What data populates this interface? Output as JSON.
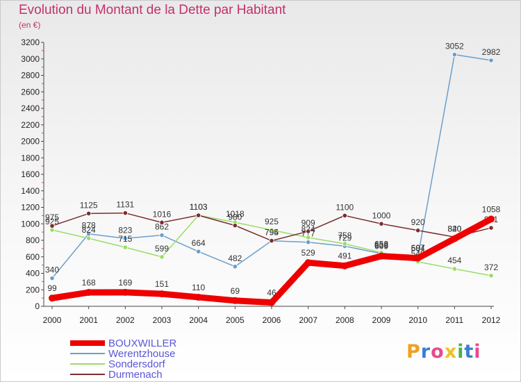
{
  "header": {
    "title": "Evolution du Montant de la Dette par Habitant",
    "subtitle": "(en €)"
  },
  "logo": {
    "text": "Proxiti",
    "colors": [
      "#f0a020",
      "#3a7fd0",
      "#e84b8a",
      "#f0c020",
      "#4caf50",
      "#3a7fd0",
      "#e84b8a"
    ]
  },
  "chart_data": {
    "type": "line",
    "title": "Evolution du Montant de la Dette par Habitant",
    "subtitle": "(en €)",
    "x": [
      "2000",
      "2001",
      "2002",
      "2003",
      "2004",
      "2005",
      "2006",
      "2007",
      "2008",
      "2009",
      "2010",
      "2011",
      "2012"
    ],
    "ylim": [
      0,
      3200
    ],
    "yticks": [
      0,
      200,
      400,
      600,
      800,
      1000,
      1200,
      1400,
      1600,
      1800,
      2000,
      2200,
      2400,
      2600,
      2800,
      3000,
      3200
    ],
    "grid": false,
    "legend": "bottom-left",
    "series": [
      {
        "name": "BOUXWILLER",
        "color": "#ee0000",
        "values": [
          99,
          168,
          169,
          151,
          110,
          69,
          46,
          529,
          491,
          609,
          584,
          820,
          1058
        ]
      },
      {
        "name": "Werentzhouse",
        "color": "#6a9fcc",
        "values": [
          340,
          878,
          823,
          862,
          664,
          482,
          794,
          777,
          729,
          639,
          607,
          3052,
          2982
        ]
      },
      {
        "name": "Sondersdorf",
        "color": "#99dd66",
        "values": [
          925,
          824,
          715,
          599,
          1103,
          1018,
          925,
          834,
          758,
          652,
          540,
          454,
          372
        ]
      },
      {
        "name": "Durmenach",
        "color": "#7a2e2e",
        "values": [
          975,
          1125,
          1131,
          1016,
          1103,
          980,
          795,
          909,
          1100,
          1000,
          920,
          840,
          951
        ]
      }
    ]
  }
}
